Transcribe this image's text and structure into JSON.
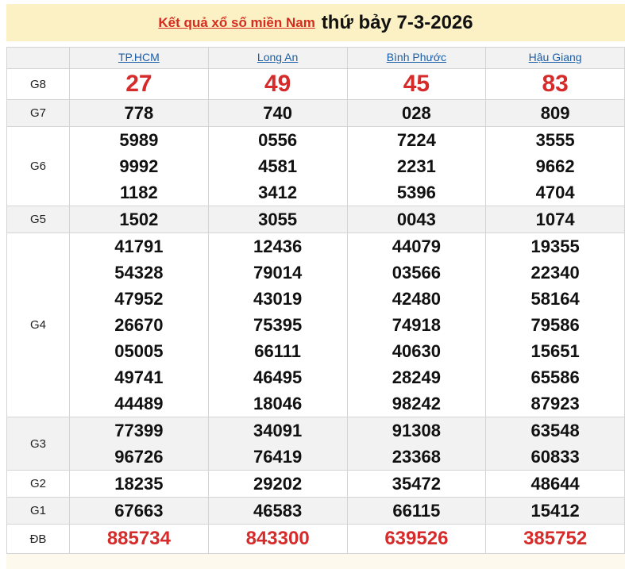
{
  "header": {
    "link": "Kết quả xổ số miền Nam",
    "date": "thứ bảy 7-3-2026"
  },
  "provinces": [
    "TP.HCM",
    "Long An",
    "Bình Phước",
    "Hậu Giang"
  ],
  "prizes": [
    {
      "label": "G8",
      "style": "big",
      "values": [
        [
          "27"
        ],
        [
          "49"
        ],
        [
          "45"
        ],
        [
          "83"
        ]
      ]
    },
    {
      "label": "G7",
      "values": [
        [
          "778"
        ],
        [
          "740"
        ],
        [
          "028"
        ],
        [
          "809"
        ]
      ]
    },
    {
      "label": "G6",
      "values": [
        [
          "5989",
          "9992",
          "1182"
        ],
        [
          "0556",
          "4581",
          "3412"
        ],
        [
          "7224",
          "2231",
          "5396"
        ],
        [
          "3555",
          "9662",
          "4704"
        ]
      ]
    },
    {
      "label": "G5",
      "values": [
        [
          "1502"
        ],
        [
          "3055"
        ],
        [
          "0043"
        ],
        [
          "1074"
        ]
      ]
    },
    {
      "label": "G4",
      "values": [
        [
          "41791",
          "54328",
          "47952",
          "26670",
          "05005",
          "49741",
          "44489"
        ],
        [
          "12436",
          "79014",
          "43019",
          "75395",
          "66111",
          "46495",
          "18046"
        ],
        [
          "44079",
          "03566",
          "42480",
          "74918",
          "40630",
          "28249",
          "98242"
        ],
        [
          "19355",
          "22340",
          "58164",
          "79586",
          "15651",
          "65586",
          "87923"
        ]
      ]
    },
    {
      "label": "G3",
      "values": [
        [
          "77399",
          "96726"
        ],
        [
          "34091",
          "76419"
        ],
        [
          "91308",
          "23368"
        ],
        [
          "63548",
          "60833"
        ]
      ]
    },
    {
      "label": "G2",
      "values": [
        [
          "18235"
        ],
        [
          "29202"
        ],
        [
          "35472"
        ],
        [
          "48644"
        ]
      ]
    },
    {
      "label": "G1",
      "values": [
        [
          "67663"
        ],
        [
          "46583"
        ],
        [
          "66115"
        ],
        [
          "15412"
        ]
      ]
    },
    {
      "label": "ĐB",
      "style": "db",
      "values": [
        [
          "885734"
        ],
        [
          "843300"
        ],
        [
          "639526"
        ],
        [
          "385752"
        ]
      ]
    }
  ],
  "colors": {
    "accent_red": "#d62b2b",
    "link_blue": "#1a5ea8",
    "title_bg": "#fbf1c4"
  }
}
